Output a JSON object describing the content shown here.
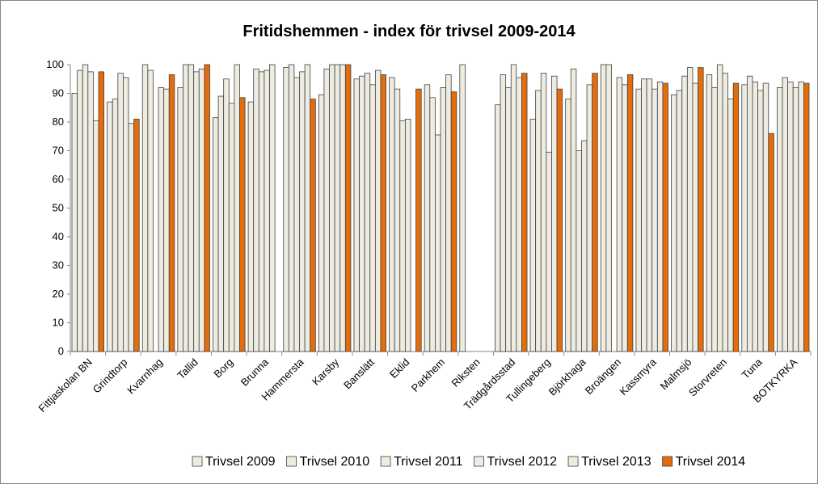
{
  "chart_data": {
    "type": "bar",
    "title": "Fritidshemmen - index för trivsel 2009-2014",
    "categories": [
      "Fittjaskolan BN",
      "Grindtorp",
      "Kvarnhag",
      "Tallid",
      "Borg",
      "Brunna",
      "Hammersta",
      "Karsby",
      "Banslätt",
      "Eklid",
      "Parkhem",
      "Riksten",
      "Trädgårdsstad",
      "Tullingeberg",
      "Björkhaga",
      "Broängen",
      "Kassmyra",
      "Malmsjö",
      "Storvreten",
      "Tuna",
      "BOTKYRKA"
    ],
    "series": [
      {
        "name": "Trivsel 2009",
        "color": "#eeece1",
        "values": [
          90,
          87,
          100,
          92,
          81.5,
          87,
          99,
          89.5,
          95,
          95.5,
          93,
          100,
          86,
          81,
          88,
          100,
          91.5,
          89.5,
          96.5,
          93,
          92
        ]
      },
      {
        "name": "Trivsel 2010",
        "color": "#eeece1",
        "values": [
          98,
          88,
          98,
          100,
          89,
          98.5,
          100,
          98.5,
          96,
          91.5,
          88.5,
          null,
          96.5,
          91,
          98.5,
          100,
          95,
          91,
          92,
          96,
          95.5
        ]
      },
      {
        "name": "Trivsel 2011",
        "color": "#eeece1",
        "values": [
          100,
          97,
          null,
          100,
          95,
          97.5,
          95.5,
          100,
          97,
          80.5,
          75.5,
          null,
          92,
          97,
          70,
          null,
          95,
          96,
          100,
          94,
          94
        ]
      },
      {
        "name": "Trivsel 2012",
        "color": "#eeece1",
        "values": [
          97.5,
          95.5,
          92,
          97.5,
          86.5,
          98,
          97.5,
          100,
          93,
          81,
          92,
          null,
          100,
          69.5,
          73.5,
          95.5,
          91.5,
          99,
          97,
          91,
          92
        ]
      },
      {
        "name": "Trivsel 2013",
        "color": "#eeece1",
        "values": [
          80.5,
          79.5,
          91.5,
          98.5,
          100,
          100,
          100,
          100,
          98,
          null,
          96.5,
          null,
          95.5,
          96,
          93,
          93,
          94,
          93.5,
          88,
          93.5,
          94
        ]
      },
      {
        "name": "Trivsel 2014",
        "color": "#e46c0a",
        "values": [
          97.5,
          81,
          96.5,
          100,
          88.5,
          null,
          88,
          100,
          96.5,
          91.5,
          90.5,
          null,
          97,
          91.5,
          97,
          96.5,
          93.5,
          99,
          93.5,
          76,
          93.5
        ]
      }
    ],
    "ylim": [
      0,
      100
    ],
    "yticks": [
      0,
      10,
      20,
      30,
      40,
      50,
      60,
      70,
      80,
      90,
      100
    ],
    "grid": false,
    "legend": "bottom"
  }
}
